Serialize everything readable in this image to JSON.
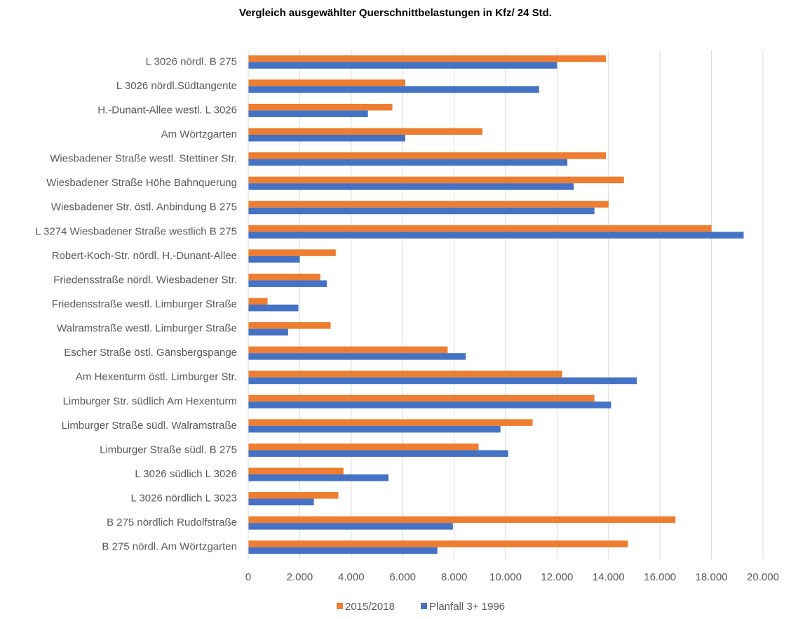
{
  "chart_data": {
    "type": "hbar",
    "title": "Vergleich ausgewählter Querschnittbelastungen in Kfz/ 24 Std.",
    "categories": [
      "L 3026 nördl. B 275",
      "L 3026 nördl.Südtangente",
      "H.-Dunant-Allee westl. L 3026",
      "Am Wörtzgarten",
      "Wiesbadener Straße westl. Stettiner Str.",
      "Wiesbadener Straße Höhe Bahnquerung",
      "Wiesbadener Str. östl. Anbindung B 275",
      "L 3274 Wiesbadener Straße westlich B 275",
      "Robert-Koch-Str. nördl. H.-Dunant-Allee",
      "Friedensstraße nördl. Wiesbadener Str.",
      "Friedensstraße westl. Limburger Straße",
      "Walramstraße westl. Limburger Straße",
      "Escher Straße östl. Gänsbergspange",
      "Am Hexenturm östl. Limburger Str.",
      "Limburger Str. südlich Am Hexenturm",
      "Limburger Straße südl. Walramstraße",
      "Limburger Straße südl. B 275",
      "L 3026 südlich L 3026",
      "L 3026 nördlich L 3023",
      "B 275 nördlich Rudolfstraße",
      "B 275 nördl. Am Wörtzgarten"
    ],
    "series": [
      {
        "name": "2015/2018",
        "color": "#ed7d31",
        "values": [
          13900,
          6100,
          5600,
          9100,
          13900,
          14600,
          14000,
          18000,
          3400,
          2800,
          750,
          3200,
          7750,
          12200,
          13450,
          11050,
          8950,
          3700,
          3500,
          16600,
          14750
        ]
      },
      {
        "name": "Planfall 3+ 1996",
        "color": "#4472c4",
        "values": [
          12000,
          11300,
          4650,
          6100,
          12400,
          12650,
          13450,
          19250,
          2000,
          3050,
          1950,
          1550,
          8450,
          15100,
          14100,
          9800,
          10100,
          5450,
          2550,
          7950,
          7350
        ]
      }
    ],
    "xlim": [
      0,
      20000
    ],
    "xticks": [
      0,
      {
        "value": 2000,
        "label": "2.000"
      },
      {
        "value": 4000,
        "label": "4.000"
      },
      {
        "value": 6000,
        "label": "6.000"
      },
      {
        "value": 8000,
        "label": "8.000"
      },
      {
        "value": 10000,
        "label": "10.000"
      },
      {
        "value": 12000,
        "label": "12.000"
      },
      {
        "value": 14000,
        "label": "14.000"
      },
      {
        "value": 16000,
        "label": "16.000"
      },
      {
        "value": 18000,
        "label": "18.000"
      },
      {
        "value": 20000,
        "label": "20.000"
      }
    ],
    "grid": true,
    "legend": "bottom"
  }
}
